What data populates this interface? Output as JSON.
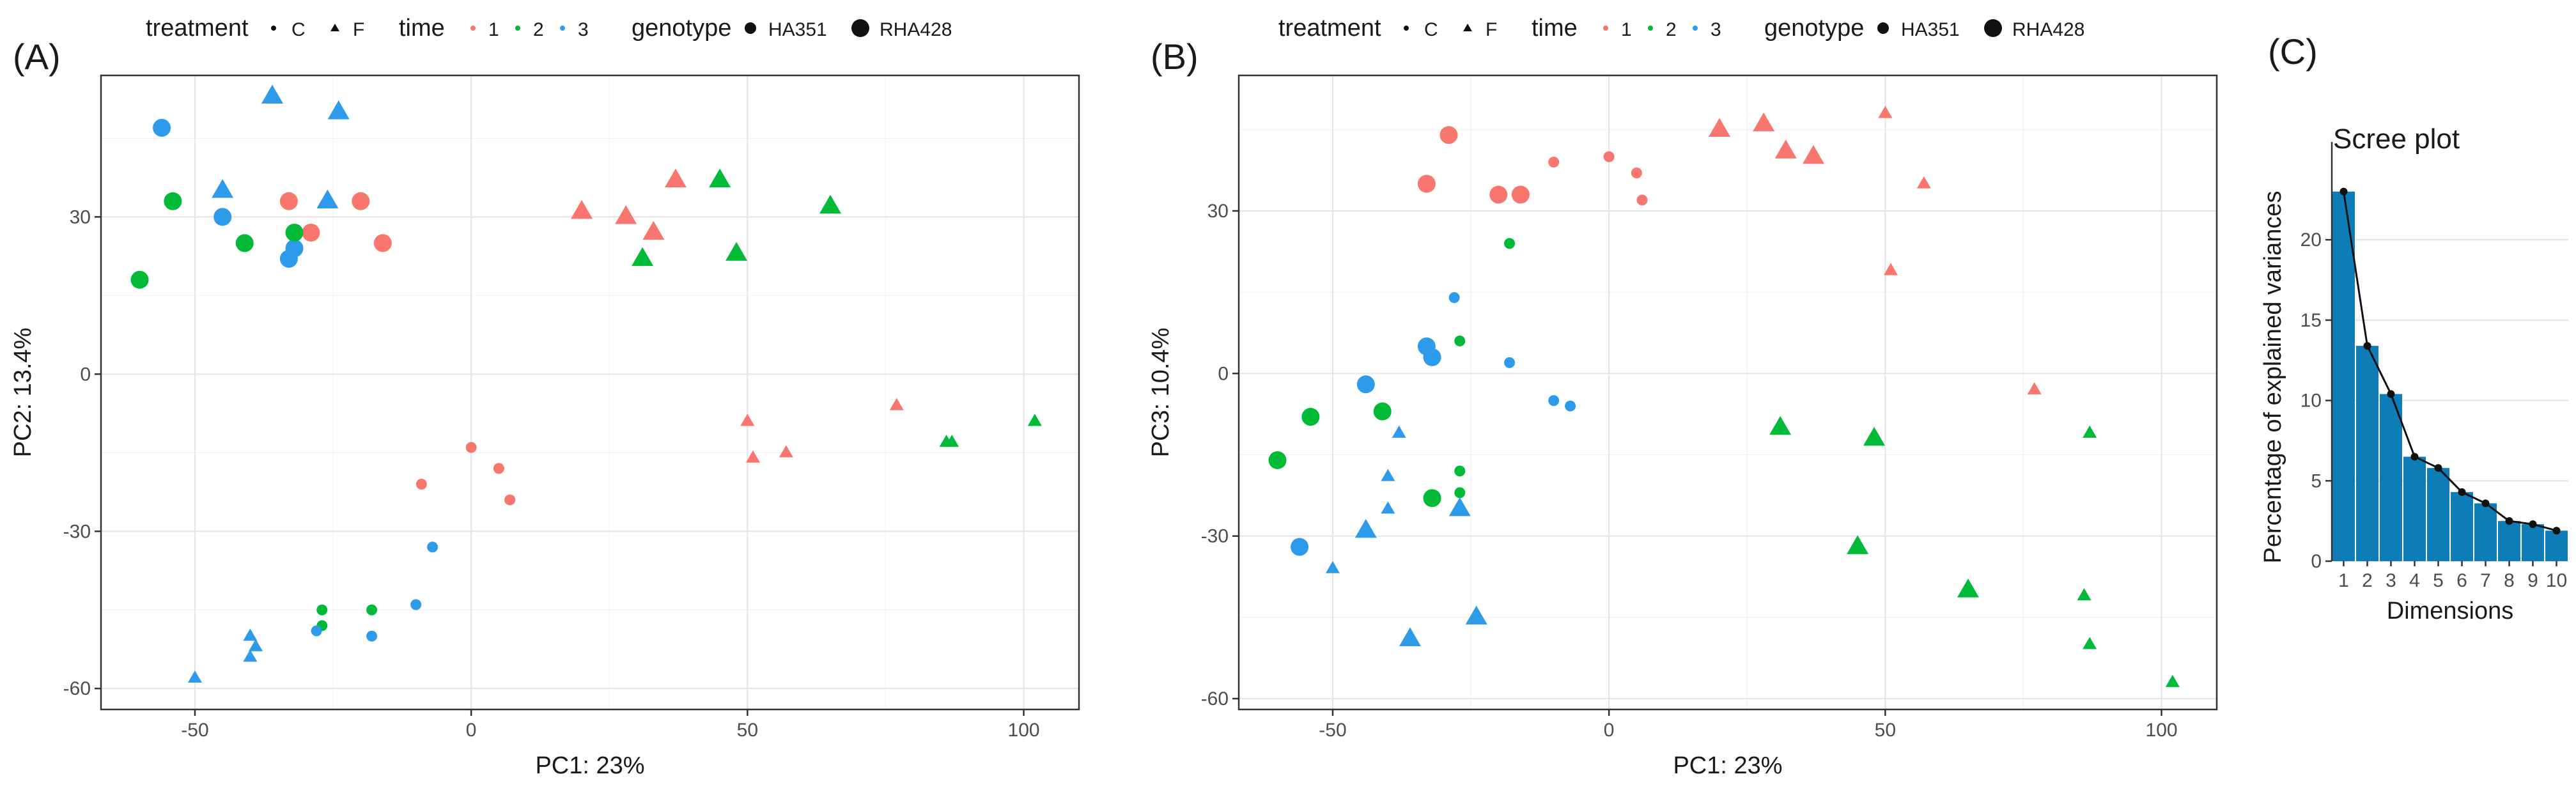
{
  "panel_labels": {
    "a": "(A)",
    "b": "(B)",
    "c": "(C)"
  },
  "colors": {
    "time1": "#F8766D",
    "time2": "#00BA38",
    "time3": "#2E9BEA",
    "bar": "#0E7CB6",
    "line": "#111111",
    "frame": "#333333"
  },
  "legend": {
    "treatment_title": "treatment",
    "treatment_items": [
      "C",
      "F"
    ],
    "time_title": "time",
    "time_items": [
      "1",
      "2",
      "3"
    ],
    "genotype_title": "genotype",
    "genotype_items": [
      "HA351",
      "RHA428"
    ]
  },
  "chart_data": [
    {
      "id": "A",
      "type": "scatter",
      "xlabel": "PC1: 23%",
      "ylabel": "PC2: 13.4%",
      "xlim": [
        -67,
        110
      ],
      "ylim": [
        -64,
        57
      ],
      "xticks": [
        -50,
        0,
        50,
        100
      ],
      "yticks": [
        -60,
        -30,
        0,
        30
      ],
      "grid": true,
      "points": [
        {
          "x": -45,
          "y": 30,
          "treatment": "C",
          "time": "3",
          "genotype": "RHA428"
        },
        {
          "x": -56,
          "y": 47,
          "treatment": "C",
          "time": "3",
          "genotype": "RHA428"
        },
        {
          "x": -33,
          "y": 22,
          "treatment": "C",
          "time": "3",
          "genotype": "RHA428"
        },
        {
          "x": -32,
          "y": 24,
          "treatment": "C",
          "time": "3",
          "genotype": "RHA428"
        },
        {
          "x": -33,
          "y": 33,
          "treatment": "C",
          "time": "1",
          "genotype": "RHA428"
        },
        {
          "x": -29,
          "y": 27,
          "treatment": "C",
          "time": "1",
          "genotype": "RHA428"
        },
        {
          "x": -20,
          "y": 33,
          "treatment": "C",
          "time": "1",
          "genotype": "RHA428"
        },
        {
          "x": -16,
          "y": 25,
          "treatment": "C",
          "time": "1",
          "genotype": "RHA428"
        },
        {
          "x": -54,
          "y": 33,
          "treatment": "C",
          "time": "2",
          "genotype": "RHA428"
        },
        {
          "x": -60,
          "y": 18,
          "treatment": "C",
          "time": "2",
          "genotype": "RHA428"
        },
        {
          "x": -41,
          "y": 25,
          "treatment": "C",
          "time": "2",
          "genotype": "RHA428"
        },
        {
          "x": -32,
          "y": 27,
          "treatment": "C",
          "time": "2",
          "genotype": "RHA428"
        },
        {
          "x": -45,
          "y": 35,
          "treatment": "F",
          "time": "3",
          "genotype": "RHA428"
        },
        {
          "x": -36,
          "y": 53,
          "treatment": "F",
          "time": "3",
          "genotype": "RHA428"
        },
        {
          "x": -26,
          "y": 33,
          "treatment": "F",
          "time": "3",
          "genotype": "RHA428"
        },
        {
          "x": -24,
          "y": 50,
          "treatment": "F",
          "time": "3",
          "genotype": "RHA428"
        },
        {
          "x": 20,
          "y": 31,
          "treatment": "F",
          "time": "1",
          "genotype": "RHA428"
        },
        {
          "x": 28,
          "y": 30,
          "treatment": "F",
          "time": "1",
          "genotype": "RHA428"
        },
        {
          "x": 33,
          "y": 27,
          "treatment": "F",
          "time": "1",
          "genotype": "RHA428"
        },
        {
          "x": 37,
          "y": 37,
          "treatment": "F",
          "time": "1",
          "genotype": "RHA428"
        },
        {
          "x": 31,
          "y": 22,
          "treatment": "F",
          "time": "2",
          "genotype": "RHA428"
        },
        {
          "x": 45,
          "y": 37,
          "treatment": "F",
          "time": "2",
          "genotype": "RHA428"
        },
        {
          "x": 48,
          "y": 23,
          "treatment": "F",
          "time": "2",
          "genotype": "RHA428"
        },
        {
          "x": 65,
          "y": 32,
          "treatment": "F",
          "time": "2",
          "genotype": "RHA428"
        },
        {
          "x": 0,
          "y": -14,
          "treatment": "C",
          "time": "1",
          "genotype": "HA351"
        },
        {
          "x": 5,
          "y": -18,
          "treatment": "C",
          "time": "1",
          "genotype": "HA351"
        },
        {
          "x": 7,
          "y": -24,
          "treatment": "C",
          "time": "1",
          "genotype": "HA351"
        },
        {
          "x": -9,
          "y": -21,
          "treatment": "C",
          "time": "1",
          "genotype": "HA351"
        },
        {
          "x": -27,
          "y": -45,
          "treatment": "C",
          "time": "2",
          "genotype": "HA351"
        },
        {
          "x": -27,
          "y": -48,
          "treatment": "C",
          "time": "2",
          "genotype": "HA351"
        },
        {
          "x": -18,
          "y": -45,
          "treatment": "C",
          "time": "2",
          "genotype": "HA351"
        },
        {
          "x": -28,
          "y": -49,
          "treatment": "C",
          "time": "3",
          "genotype": "HA351"
        },
        {
          "x": -18,
          "y": -50,
          "treatment": "C",
          "time": "3",
          "genotype": "HA351"
        },
        {
          "x": -10,
          "y": -44,
          "treatment": "C",
          "time": "3",
          "genotype": "HA351"
        },
        {
          "x": -7,
          "y": -33,
          "treatment": "C",
          "time": "3",
          "genotype": "HA351"
        },
        {
          "x": 50,
          "y": -9,
          "treatment": "F",
          "time": "1",
          "genotype": "HA351"
        },
        {
          "x": 51,
          "y": -16,
          "treatment": "F",
          "time": "1",
          "genotype": "HA351"
        },
        {
          "x": 57,
          "y": -15,
          "treatment": "F",
          "time": "1",
          "genotype": "HA351"
        },
        {
          "x": 77,
          "y": -6,
          "treatment": "F",
          "time": "1",
          "genotype": "HA351"
        },
        {
          "x": 86,
          "y": -13,
          "treatment": "F",
          "time": "2",
          "genotype": "HA351"
        },
        {
          "x": 87,
          "y": -13,
          "treatment": "F",
          "time": "2",
          "genotype": "HA351"
        },
        {
          "x": 102,
          "y": -9,
          "treatment": "F",
          "time": "2",
          "genotype": "HA351"
        },
        {
          "x": -50,
          "y": -58,
          "treatment": "F",
          "time": "3",
          "genotype": "HA351"
        },
        {
          "x": -40,
          "y": -50,
          "treatment": "F",
          "time": "3",
          "genotype": "HA351"
        },
        {
          "x": -40,
          "y": -54,
          "treatment": "F",
          "time": "3",
          "genotype": "HA351"
        },
        {
          "x": -39,
          "y": -52,
          "treatment": "F",
          "time": "3",
          "genotype": "HA351"
        }
      ]
    },
    {
      "id": "B",
      "type": "scatter",
      "xlabel": "PC1: 23%",
      "ylabel": "PC3: 10.4%",
      "xlim": [
        -67,
        110
      ],
      "ylim": [
        -62,
        55
      ],
      "xticks": [
        -50,
        0,
        50,
        100
      ],
      "yticks": [
        -60,
        -30,
        0,
        30
      ],
      "grid": true,
      "points": [
        {
          "x": -29,
          "y": 44,
          "treatment": "C",
          "time": "1",
          "genotype": "RHA428"
        },
        {
          "x": -33,
          "y": 35,
          "treatment": "C",
          "time": "1",
          "genotype": "RHA428"
        },
        {
          "x": -20,
          "y": 33,
          "treatment": "C",
          "time": "1",
          "genotype": "RHA428"
        },
        {
          "x": -16,
          "y": 33,
          "treatment": "C",
          "time": "1",
          "genotype": "RHA428"
        },
        {
          "x": -44,
          "y": -2,
          "treatment": "C",
          "time": "3",
          "genotype": "RHA428"
        },
        {
          "x": -33,
          "y": 5,
          "treatment": "C",
          "time": "3",
          "genotype": "RHA428"
        },
        {
          "x": -32,
          "y": 3,
          "treatment": "C",
          "time": "3",
          "genotype": "RHA428"
        },
        {
          "x": -56,
          "y": -32,
          "treatment": "C",
          "time": "3",
          "genotype": "RHA428"
        },
        {
          "x": -54,
          "y": -8,
          "treatment": "C",
          "time": "2",
          "genotype": "RHA428"
        },
        {
          "x": -60,
          "y": -16,
          "treatment": "C",
          "time": "2",
          "genotype": "RHA428"
        },
        {
          "x": -41,
          "y": -7,
          "treatment": "C",
          "time": "2",
          "genotype": "RHA428"
        },
        {
          "x": -32,
          "y": -23,
          "treatment": "C",
          "time": "2",
          "genotype": "RHA428"
        },
        {
          "x": -10,
          "y": 39,
          "treatment": "C",
          "time": "1",
          "genotype": "HA351"
        },
        {
          "x": 0,
          "y": 40,
          "treatment": "C",
          "time": "1",
          "genotype": "HA351"
        },
        {
          "x": 5,
          "y": 37,
          "treatment": "C",
          "time": "1",
          "genotype": "HA351"
        },
        {
          "x": 6,
          "y": 32,
          "treatment": "C",
          "time": "1",
          "genotype": "HA351"
        },
        {
          "x": -18,
          "y": 24,
          "treatment": "C",
          "time": "2",
          "genotype": "HA351"
        },
        {
          "x": -27,
          "y": 6,
          "treatment": "C",
          "time": "2",
          "genotype": "HA351"
        },
        {
          "x": -27,
          "y": -18,
          "treatment": "C",
          "time": "2",
          "genotype": "HA351"
        },
        {
          "x": -27,
          "y": -22,
          "treatment": "C",
          "time": "2",
          "genotype": "HA351"
        },
        {
          "x": -28,
          "y": 14,
          "treatment": "C",
          "time": "3",
          "genotype": "HA351"
        },
        {
          "x": -18,
          "y": 2,
          "treatment": "C",
          "time": "3",
          "genotype": "HA351"
        },
        {
          "x": -10,
          "y": -5,
          "treatment": "C",
          "time": "3",
          "genotype": "HA351"
        },
        {
          "x": -7,
          "y": -6,
          "treatment": "C",
          "time": "3",
          "genotype": "HA351"
        },
        {
          "x": 20,
          "y": 45,
          "treatment": "F",
          "time": "1",
          "genotype": "RHA428"
        },
        {
          "x": 28,
          "y": 46,
          "treatment": "F",
          "time": "1",
          "genotype": "RHA428"
        },
        {
          "x": 32,
          "y": 41,
          "treatment": "F",
          "time": "1",
          "genotype": "RHA428"
        },
        {
          "x": 37,
          "y": 40,
          "treatment": "F",
          "time": "1",
          "genotype": "RHA428"
        },
        {
          "x": 31,
          "y": -10,
          "treatment": "F",
          "time": "2",
          "genotype": "RHA428"
        },
        {
          "x": 48,
          "y": -12,
          "treatment": "F",
          "time": "2",
          "genotype": "RHA428"
        },
        {
          "x": 45,
          "y": -32,
          "treatment": "F",
          "time": "2",
          "genotype": "RHA428"
        },
        {
          "x": 65,
          "y": -40,
          "treatment": "F",
          "time": "2",
          "genotype": "RHA428"
        },
        {
          "x": -44,
          "y": -29,
          "treatment": "F",
          "time": "3",
          "genotype": "RHA428"
        },
        {
          "x": -27,
          "y": -25,
          "treatment": "F",
          "time": "3",
          "genotype": "RHA428"
        },
        {
          "x": -36,
          "y": -49,
          "treatment": "F",
          "time": "3",
          "genotype": "RHA428"
        },
        {
          "x": -24,
          "y": -45,
          "treatment": "F",
          "time": "3",
          "genotype": "RHA428"
        },
        {
          "x": 50,
          "y": 48,
          "treatment": "F",
          "time": "1",
          "genotype": "HA351"
        },
        {
          "x": 57,
          "y": 35,
          "treatment": "F",
          "time": "1",
          "genotype": "HA351"
        },
        {
          "x": 51,
          "y": 19,
          "treatment": "F",
          "time": "1",
          "genotype": "HA351"
        },
        {
          "x": 77,
          "y": -3,
          "treatment": "F",
          "time": "1",
          "genotype": "HA351"
        },
        {
          "x": 87,
          "y": -11,
          "treatment": "F",
          "time": "2",
          "genotype": "HA351"
        },
        {
          "x": 86,
          "y": -41,
          "treatment": "F",
          "time": "2",
          "genotype": "HA351"
        },
        {
          "x": 87,
          "y": -50,
          "treatment": "F",
          "time": "2",
          "genotype": "HA351"
        },
        {
          "x": 102,
          "y": -57,
          "treatment": "F",
          "time": "2",
          "genotype": "HA351"
        },
        {
          "x": -50,
          "y": -36,
          "treatment": "F",
          "time": "3",
          "genotype": "HA351"
        },
        {
          "x": -38,
          "y": -11,
          "treatment": "F",
          "time": "3",
          "genotype": "HA351"
        },
        {
          "x": -40,
          "y": -19,
          "treatment": "F",
          "time": "3",
          "genotype": "HA351"
        },
        {
          "x": -40,
          "y": -25,
          "treatment": "F",
          "time": "3",
          "genotype": "HA351"
        }
      ]
    },
    {
      "id": "C",
      "type": "bar",
      "title": "Scree plot",
      "xlabel": "Dimensions",
      "ylabel": "Percentage of explained variances",
      "categories": [
        "1",
        "2",
        "3",
        "4",
        "5",
        "6",
        "7",
        "8",
        "9",
        "10"
      ],
      "values": [
        23.0,
        13.4,
        10.4,
        6.5,
        5.8,
        4.3,
        3.6,
        2.5,
        2.3,
        1.9
      ],
      "ylim": [
        0,
        24.5
      ],
      "yticks": [
        0,
        5,
        10,
        15,
        20
      ],
      "line_overlay": true,
      "grid": true
    }
  ]
}
